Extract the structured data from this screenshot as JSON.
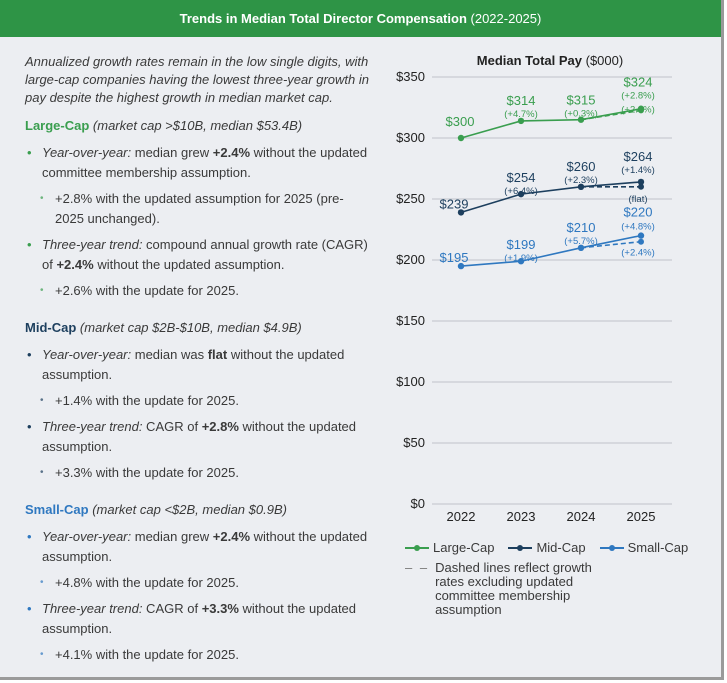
{
  "header": {
    "title": "Trends in Median Total Director Compensation",
    "years": "(2022-2025)"
  },
  "intro": "Annualized growth rates remain in the low single digits, with large-cap companies having the lowest three-year growth in pay despite the highest growth in median market cap.",
  "groups": [
    {
      "name": "Large-Cap",
      "detail": "(market cap >$10B, median $53.4B)",
      "color": "#3a9e4f",
      "items": [
        {
          "lead": "Year-over-year:",
          "pre": " median grew ",
          "bold": "+2.4%",
          "post": " without the updated committee membership assumption.",
          "sub": "+2.8% with the updated assumption for 2025 (pre-2025 unchanged)."
        },
        {
          "lead": "Three-year trend:",
          "pre": " compound annual growth rate (CAGR) of ",
          "bold": "+2.4%",
          "post": " without the updated assumption.",
          "sub": "+2.6% with the update for 2025."
        }
      ]
    },
    {
      "name": "Mid-Cap",
      "detail": "(market cap $2B-$10B, median $4.9B)",
      "color": "#1d3f5e",
      "items": [
        {
          "lead": "Year-over-year:",
          "pre": " median was ",
          "bold": "flat",
          "post": " without the updated assumption.",
          "sub": "+1.4% with the update for 2025."
        },
        {
          "lead": "Three-year trend:",
          "pre": " CAGR of ",
          "bold": "+2.8%",
          "post": " without the updated assumption.",
          "sub": "+3.3% with the update for 2025."
        }
      ]
    },
    {
      "name": "Small-Cap",
      "detail": "(market cap <$2B, median $0.9B)",
      "color": "#2f78c0",
      "items": [
        {
          "lead": "Year-over-year:",
          "pre": " median grew ",
          "bold": "+2.4%",
          "post": " without the updated assumption.",
          "sub": "+4.8% with the update for 2025."
        },
        {
          "lead": "Three-year trend:",
          "pre": " CAGR of ",
          "bold": "+3.3%",
          "post": " without the updated assumption.",
          "sub": "+4.1% with the update for 2025."
        }
      ]
    }
  ],
  "chart_data": {
    "type": "line",
    "title": "Median Total Pay",
    "title_unit": "($000)",
    "categories": [
      "2022",
      "2023",
      "2024",
      "2025"
    ],
    "yticks": [
      "$0",
      "$50",
      "$100",
      "$150",
      "$200",
      "$250",
      "$300",
      "$350"
    ],
    "ylim": [
      0,
      350
    ],
    "series": [
      {
        "name": "Large-Cap",
        "color": "#3a9e4f",
        "values": [
          300,
          314,
          315,
          324
        ],
        "labels": [
          "$300",
          "$314",
          "$315",
          "$324"
        ],
        "growth": [
          "",
          "(+4.7%)",
          "(+0.3%)",
          "(+2.8%)"
        ],
        "dashed_2025": 322.6,
        "dashed_label": "(+2.4%)"
      },
      {
        "name": "Mid-Cap",
        "color": "#1d3f5e",
        "values": [
          239,
          254,
          260,
          264
        ],
        "labels": [
          "$239",
          "$254",
          "$260",
          "$264"
        ],
        "growth": [
          "",
          "(+6.4%)",
          "(+2.3%)",
          "(+1.4%)"
        ],
        "dashed_2025": 260,
        "dashed_label": "(flat)"
      },
      {
        "name": "Small-Cap",
        "color": "#2f78c0",
        "values": [
          195,
          199,
          210,
          220
        ],
        "labels": [
          "$195",
          "$199",
          "$210",
          "$220"
        ],
        "growth": [
          "",
          "(+1.9%)",
          "(+5.7%)",
          "(+4.8%)"
        ],
        "dashed_2025": 215,
        "dashed_label": "(+2.4%)"
      }
    ],
    "legend_note": "Dashed lines reflect growth rates excluding updated committee membership assumption",
    "legend_position": "bottom"
  }
}
